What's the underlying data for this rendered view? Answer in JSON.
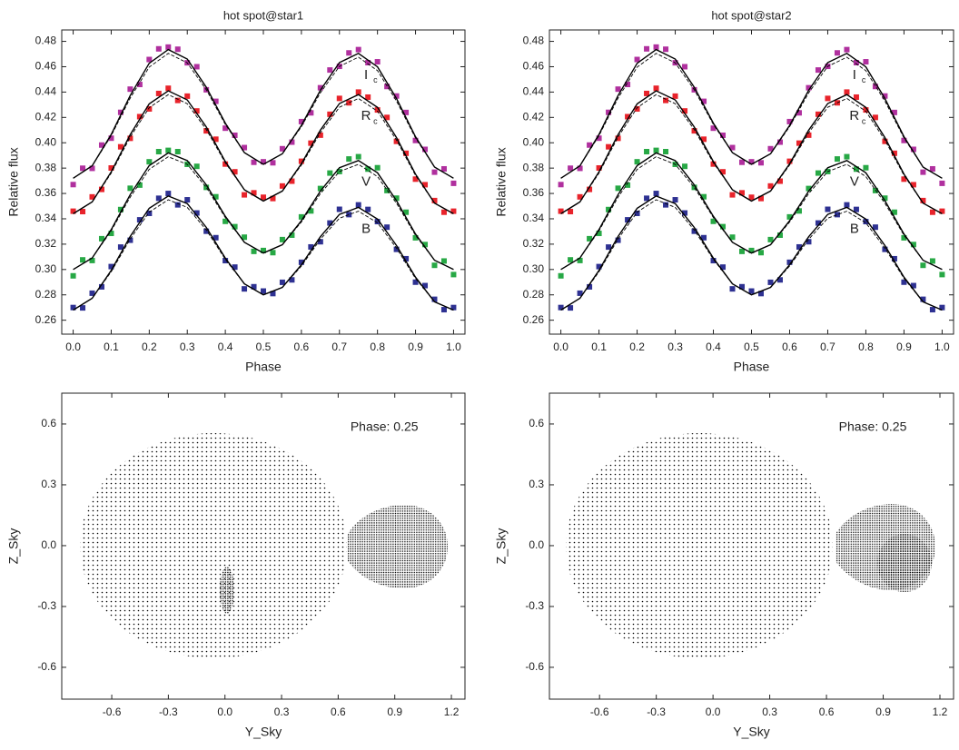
{
  "chart_data": [
    {
      "type": "line",
      "title": "hot spot@star1",
      "xlabel": "Phase",
      "ylabel": "Relative flux",
      "xlim": [
        -0.03,
        1.03
      ],
      "ylim": [
        0.249,
        0.489
      ],
      "xticks": [
        {
          "value": 0,
          "label": "0.0"
        },
        0.1,
        0.2,
        0.3,
        0.4,
        0.5,
        0.6,
        0.7,
        0.8,
        0.9,
        {
          "value": 1,
          "label": "1.0"
        }
      ],
      "yticks": [
        0.26,
        0.28,
        {
          "value": 0.3,
          "label": "0.30"
        },
        0.32,
        0.34,
        0.36,
        0.38,
        {
          "value": 0.4,
          "label": "0.40"
        },
        0.42,
        0.44,
        0.46,
        0.48
      ],
      "x": [
        0,
        0.025,
        0.05,
        0.075,
        0.1,
        0.125,
        0.15,
        0.175,
        0.2,
        0.225,
        0.25,
        0.275,
        0.3,
        0.325,
        0.35,
        0.375,
        0.4,
        0.425,
        0.45,
        0.475,
        0.5,
        0.525,
        0.55,
        0.575,
        0.6,
        0.625,
        0.65,
        0.675,
        0.7,
        0.725,
        0.75,
        0.775,
        0.8,
        0.825,
        0.85,
        0.875,
        0.9,
        0.925,
        0.95,
        0.975,
        1
      ],
      "model_x": [
        0,
        0.05,
        0.1,
        0.15,
        0.2,
        0.25,
        0.3,
        0.35,
        0.4,
        0.45,
        0.5,
        0.55,
        0.6,
        0.65,
        0.7,
        0.75,
        0.8,
        0.85,
        0.9,
        0.95,
        1
      ],
      "series": [
        {
          "name": "I",
          "subscript": "c",
          "color": "#b0309e",
          "values": [
            0.367,
            0.3799,
            0.3798,
            0.3982,
            0.4036,
            0.424,
            0.4423,
            0.446,
            0.4657,
            0.4741,
            0.4755,
            0.4738,
            0.4631,
            0.46,
            0.4418,
            0.4327,
            0.4115,
            0.4059,
            0.3962,
            0.3846,
            0.385,
            0.3842,
            0.3953,
            0.4005,
            0.4167,
            0.4236,
            0.4434,
            0.4574,
            0.4603,
            0.4709,
            0.4735,
            0.4632,
            0.4639,
            0.4444,
            0.4369,
            0.4239,
            0.4018,
            0.3948,
            0.3768,
            0.3794,
            0.368
          ],
          "model": [
            0.372,
            0.3818,
            0.4066,
            0.4373,
            0.4627,
            0.4735,
            0.4661,
            0.4438,
            0.4155,
            0.3922,
            0.383,
            0.3913,
            0.4137,
            0.4414,
            0.4633,
            0.4705,
            0.4599,
            0.4349,
            0.4048,
            0.3808,
            0.372
          ],
          "model_alt": [
            0.372,
            0.3818,
            0.4056,
            0.4353,
            0.4597,
            0.4705,
            0.4631,
            0.4418,
            0.4145,
            0.3922,
            0.383,
            0.3913,
            0.4127,
            0.4394,
            0.4603,
            0.4675,
            0.4569,
            0.4329,
            0.4038,
            0.3808,
            0.372
          ]
        },
        {
          "name": "R",
          "subscript": "c",
          "color": "#e8232b",
          "values": [
            0.346,
            0.3457,
            0.3573,
            0.3632,
            0.3801,
            0.3968,
            0.4035,
            0.4206,
            0.4267,
            0.4389,
            0.443,
            0.4334,
            0.4368,
            0.4251,
            0.4094,
            0.4028,
            0.3832,
            0.3771,
            0.3589,
            0.3605,
            0.357,
            0.356,
            0.3659,
            0.3697,
            0.3854,
            0.3997,
            0.406,
            0.4225,
            0.435,
            0.4315,
            0.44,
            0.436,
            0.4259,
            0.42,
            0.4011,
            0.3917,
            0.3713,
            0.3669,
            0.3544,
            0.3452,
            0.346
          ],
          "model": [
            0.344,
            0.3533,
            0.3771,
            0.4065,
            0.4307,
            0.441,
            0.4338,
            0.4124,
            0.3852,
            0.3629,
            0.354,
            0.3619,
            0.3834,
            0.41,
            0.431,
            0.438,
            0.4279,
            0.4041,
            0.3753,
            0.3524,
            0.344
          ],
          "model_alt": [
            0.344,
            0.3533,
            0.3761,
            0.4045,
            0.4277,
            0.438,
            0.4308,
            0.4104,
            0.3842,
            0.3629,
            0.354,
            0.3619,
            0.3824,
            0.408,
            0.428,
            0.435,
            0.4249,
            0.4021,
            0.3743,
            0.3524,
            0.344
          ]
        },
        {
          "name": "V",
          "color": "#27a845",
          "values": [
            0.295,
            0.3076,
            0.3071,
            0.3243,
            0.3285,
            0.3473,
            0.3641,
            0.3666,
            0.385,
            0.393,
            0.394,
            0.393,
            0.383,
            0.3814,
            0.3648,
            0.3574,
            0.338,
            0.3338,
            0.3255,
            0.3143,
            0.315,
            0.3133,
            0.3236,
            0.3271,
            0.3415,
            0.3462,
            0.3639,
            0.3761,
            0.3773,
            0.3872,
            0.389,
            0.3792,
            0.3803,
            0.3623,
            0.3563,
            0.3452,
            0.325,
            0.3197,
            0.3033,
            0.3067,
            0.296
          ],
          "model": [
            0.3,
            0.3091,
            0.3315,
            0.3591,
            0.382,
            0.392,
            0.386,
            0.3668,
            0.342,
            0.3215,
            0.313,
            0.3196,
            0.3385,
            0.3619,
            0.3803,
            0.386,
            0.3763,
            0.3543,
            0.328,
            0.3073,
            0.3
          ],
          "model_alt": [
            0.3,
            0.3091,
            0.3305,
            0.3571,
            0.379,
            0.389,
            0.383,
            0.3648,
            0.341,
            0.3215,
            0.313,
            0.3196,
            0.3375,
            0.3599,
            0.3773,
            0.383,
            0.3733,
            0.3523,
            0.327,
            0.3073,
            0.3
          ]
        },
        {
          "name": "B",
          "color": "#2e3192",
          "values": [
            0.27,
            0.2697,
            0.2813,
            0.2863,
            0.3023,
            0.3177,
            0.3231,
            0.3392,
            0.3443,
            0.3562,
            0.36,
            0.351,
            0.355,
            0.3446,
            0.3302,
            0.3251,
            0.307,
            0.3019,
            0.2847,
            0.2864,
            0.283,
            0.281,
            0.2899,
            0.2918,
            0.3057,
            0.3178,
            0.3219,
            0.3367,
            0.3475,
            0.3433,
            0.351,
            0.3474,
            0.3378,
            0.3334,
            0.3159,
            0.3085,
            0.29,
            0.2873,
            0.2765,
            0.2683,
            0.27
          ],
          "model": [
            0.268,
            0.2773,
            0.2993,
            0.3261,
            0.3483,
            0.358,
            0.352,
            0.3332,
            0.309,
            0.2887,
            0.28,
            0.2859,
            0.3037,
            0.3259,
            0.3435,
            0.349,
            0.3398,
            0.3189,
            0.294,
            0.2745,
            0.268
          ],
          "model_alt": [
            0.268,
            0.2773,
            0.2983,
            0.3241,
            0.3453,
            0.355,
            0.349,
            0.3312,
            0.308,
            0.2887,
            0.28,
            0.2859,
            0.3027,
            0.3239,
            0.3405,
            0.346,
            0.3368,
            0.3169,
            0.293,
            0.2745,
            0.268
          ]
        }
      ]
    },
    {
      "type": "line",
      "title": "hot spot@star2",
      "xlabel": "Phase",
      "ylabel": "Relative flux",
      "xlim": [
        -0.03,
        1.03
      ],
      "ylim": [
        0.249,
        0.489
      ],
      "xticks": [
        {
          "value": 0,
          "label": "0.0"
        },
        0.1,
        0.2,
        0.3,
        0.4,
        0.5,
        0.6,
        0.7,
        0.8,
        0.9,
        {
          "value": 1,
          "label": "1.0"
        }
      ],
      "yticks": [
        0.26,
        0.28,
        {
          "value": 0.3,
          "label": "0.30"
        },
        0.32,
        0.34,
        0.36,
        0.38,
        {
          "value": 0.4,
          "label": "0.40"
        },
        0.42,
        0.44,
        0.46,
        0.48
      ],
      "x": [
        0,
        0.025,
        0.05,
        0.075,
        0.1,
        0.125,
        0.15,
        0.175,
        0.2,
        0.225,
        0.25,
        0.275,
        0.3,
        0.325,
        0.35,
        0.375,
        0.4,
        0.425,
        0.45,
        0.475,
        0.5,
        0.525,
        0.55,
        0.575,
        0.6,
        0.625,
        0.65,
        0.675,
        0.7,
        0.725,
        0.75,
        0.775,
        0.8,
        0.825,
        0.85,
        0.875,
        0.9,
        0.925,
        0.95,
        0.975,
        1
      ],
      "model_x": [
        0,
        0.05,
        0.1,
        0.15,
        0.2,
        0.25,
        0.3,
        0.35,
        0.4,
        0.45,
        0.5,
        0.55,
        0.6,
        0.65,
        0.7,
        0.75,
        0.8,
        0.85,
        0.9,
        0.95,
        1
      ],
      "series": [
        {
          "name": "I",
          "subscript": "c",
          "color": "#b0309e",
          "values": [
            0.367,
            0.3799,
            0.3798,
            0.3982,
            0.4036,
            0.424,
            0.4423,
            0.446,
            0.4657,
            0.4741,
            0.4755,
            0.4738,
            0.4631,
            0.46,
            0.4418,
            0.4327,
            0.4115,
            0.4059,
            0.3962,
            0.3846,
            0.385,
            0.3842,
            0.3953,
            0.4005,
            0.4167,
            0.4236,
            0.4434,
            0.4574,
            0.4603,
            0.4709,
            0.4735,
            0.4632,
            0.4639,
            0.4444,
            0.4369,
            0.4239,
            0.4018,
            0.3948,
            0.3768,
            0.3794,
            0.368
          ],
          "model": [
            0.372,
            0.3818,
            0.4066,
            0.4373,
            0.4627,
            0.4735,
            0.4661,
            0.4438,
            0.4155,
            0.3922,
            0.383,
            0.3913,
            0.4137,
            0.4414,
            0.4633,
            0.4705,
            0.4599,
            0.4349,
            0.4048,
            0.3808,
            0.372
          ],
          "model_alt": [
            0.372,
            0.3818,
            0.4056,
            0.4353,
            0.4597,
            0.4705,
            0.4631,
            0.4418,
            0.4145,
            0.3922,
            0.383,
            0.3913,
            0.4127,
            0.4394,
            0.4603,
            0.4675,
            0.4569,
            0.4329,
            0.4038,
            0.3808,
            0.372
          ]
        },
        {
          "name": "R",
          "subscript": "c",
          "color": "#e8232b",
          "values": [
            0.346,
            0.3457,
            0.3573,
            0.3632,
            0.3801,
            0.3968,
            0.4035,
            0.4206,
            0.4267,
            0.4389,
            0.443,
            0.4334,
            0.4368,
            0.4251,
            0.4094,
            0.4028,
            0.3832,
            0.3771,
            0.3589,
            0.3605,
            0.357,
            0.356,
            0.3659,
            0.3697,
            0.3854,
            0.3997,
            0.406,
            0.4225,
            0.435,
            0.4315,
            0.44,
            0.436,
            0.4259,
            0.42,
            0.4011,
            0.3917,
            0.3713,
            0.3669,
            0.3544,
            0.3452,
            0.346
          ],
          "model": [
            0.344,
            0.3533,
            0.3771,
            0.4065,
            0.4307,
            0.441,
            0.4338,
            0.4124,
            0.3852,
            0.3629,
            0.354,
            0.3619,
            0.3834,
            0.41,
            0.431,
            0.438,
            0.4279,
            0.4041,
            0.3753,
            0.3524,
            0.344
          ],
          "model_alt": [
            0.344,
            0.3533,
            0.3761,
            0.4045,
            0.4277,
            0.438,
            0.4308,
            0.4104,
            0.3842,
            0.3629,
            0.354,
            0.3619,
            0.3824,
            0.408,
            0.428,
            0.435,
            0.4249,
            0.4021,
            0.3743,
            0.3524,
            0.344
          ]
        },
        {
          "name": "V",
          "color": "#27a845",
          "values": [
            0.295,
            0.3076,
            0.3071,
            0.3243,
            0.3285,
            0.3473,
            0.3641,
            0.3666,
            0.385,
            0.393,
            0.394,
            0.393,
            0.383,
            0.3814,
            0.3648,
            0.3574,
            0.338,
            0.3338,
            0.3255,
            0.3143,
            0.315,
            0.3133,
            0.3236,
            0.3271,
            0.3415,
            0.3462,
            0.3639,
            0.3761,
            0.3773,
            0.3872,
            0.389,
            0.3792,
            0.3803,
            0.3623,
            0.3563,
            0.3452,
            0.325,
            0.3197,
            0.3033,
            0.3067,
            0.296
          ],
          "model": [
            0.3,
            0.3091,
            0.3315,
            0.3591,
            0.382,
            0.392,
            0.386,
            0.3668,
            0.342,
            0.3215,
            0.313,
            0.3196,
            0.3385,
            0.3619,
            0.3803,
            0.386,
            0.3763,
            0.3543,
            0.328,
            0.3073,
            0.3
          ],
          "model_alt": [
            0.3,
            0.3091,
            0.3305,
            0.3571,
            0.379,
            0.389,
            0.383,
            0.3648,
            0.341,
            0.3215,
            0.313,
            0.3196,
            0.3375,
            0.3599,
            0.3773,
            0.383,
            0.3733,
            0.3523,
            0.327,
            0.3073,
            0.3
          ]
        },
        {
          "name": "B",
          "color": "#2e3192",
          "values": [
            0.27,
            0.2697,
            0.2813,
            0.2863,
            0.3023,
            0.3177,
            0.3231,
            0.3392,
            0.3443,
            0.3562,
            0.36,
            0.351,
            0.355,
            0.3446,
            0.3302,
            0.3251,
            0.307,
            0.3019,
            0.2847,
            0.2864,
            0.283,
            0.281,
            0.2899,
            0.2918,
            0.3057,
            0.3178,
            0.3219,
            0.3367,
            0.3475,
            0.3433,
            0.351,
            0.3474,
            0.3378,
            0.3334,
            0.3159,
            0.3085,
            0.29,
            0.2873,
            0.2765,
            0.2683,
            0.27
          ],
          "model": [
            0.268,
            0.2773,
            0.2993,
            0.3261,
            0.3483,
            0.358,
            0.352,
            0.3332,
            0.309,
            0.2887,
            0.28,
            0.2859,
            0.3037,
            0.3259,
            0.3435,
            0.349,
            0.3398,
            0.3189,
            0.294,
            0.2745,
            0.268
          ],
          "model_alt": [
            0.268,
            0.2773,
            0.2983,
            0.3241,
            0.3453,
            0.355,
            0.349,
            0.3312,
            0.308,
            0.2887,
            0.28,
            0.2859,
            0.3027,
            0.3239,
            0.3405,
            0.346,
            0.3368,
            0.3169,
            0.293,
            0.2745,
            0.268
          ]
        }
      ]
    },
    {
      "type": "scatter",
      "xlabel": "Y_Sky",
      "ylabel": "Z_Sky",
      "annotation": "Phase: 0.25",
      "xlim": [
        -0.865,
        1.272
      ],
      "ylim": [
        -0.757,
        0.752
      ],
      "xticks": [
        -0.6,
        -0.3,
        {
          "value": 0,
          "label": "0.0"
        },
        0.3,
        0.6,
        0.9,
        1.2
      ],
      "yticks": [
        -0.6,
        -0.3,
        {
          "value": 0,
          "label": "0.0"
        },
        0.3,
        0.6
      ]
    },
    {
      "type": "scatter",
      "xlabel": "Y_Sky",
      "ylabel": "Z_Sky",
      "annotation": "Phase: 0.25",
      "xlim": [
        -0.865,
        1.272
      ],
      "ylim": [
        -0.757,
        0.752
      ],
      "xticks": [
        -0.6,
        -0.3,
        {
          "value": 0,
          "label": "0.0"
        },
        0.3,
        0.6,
        0.9,
        1.2
      ],
      "yticks": [
        -0.6,
        -0.3,
        {
          "value": 0,
          "label": "0.0"
        },
        0.3,
        0.6
      ]
    }
  ]
}
